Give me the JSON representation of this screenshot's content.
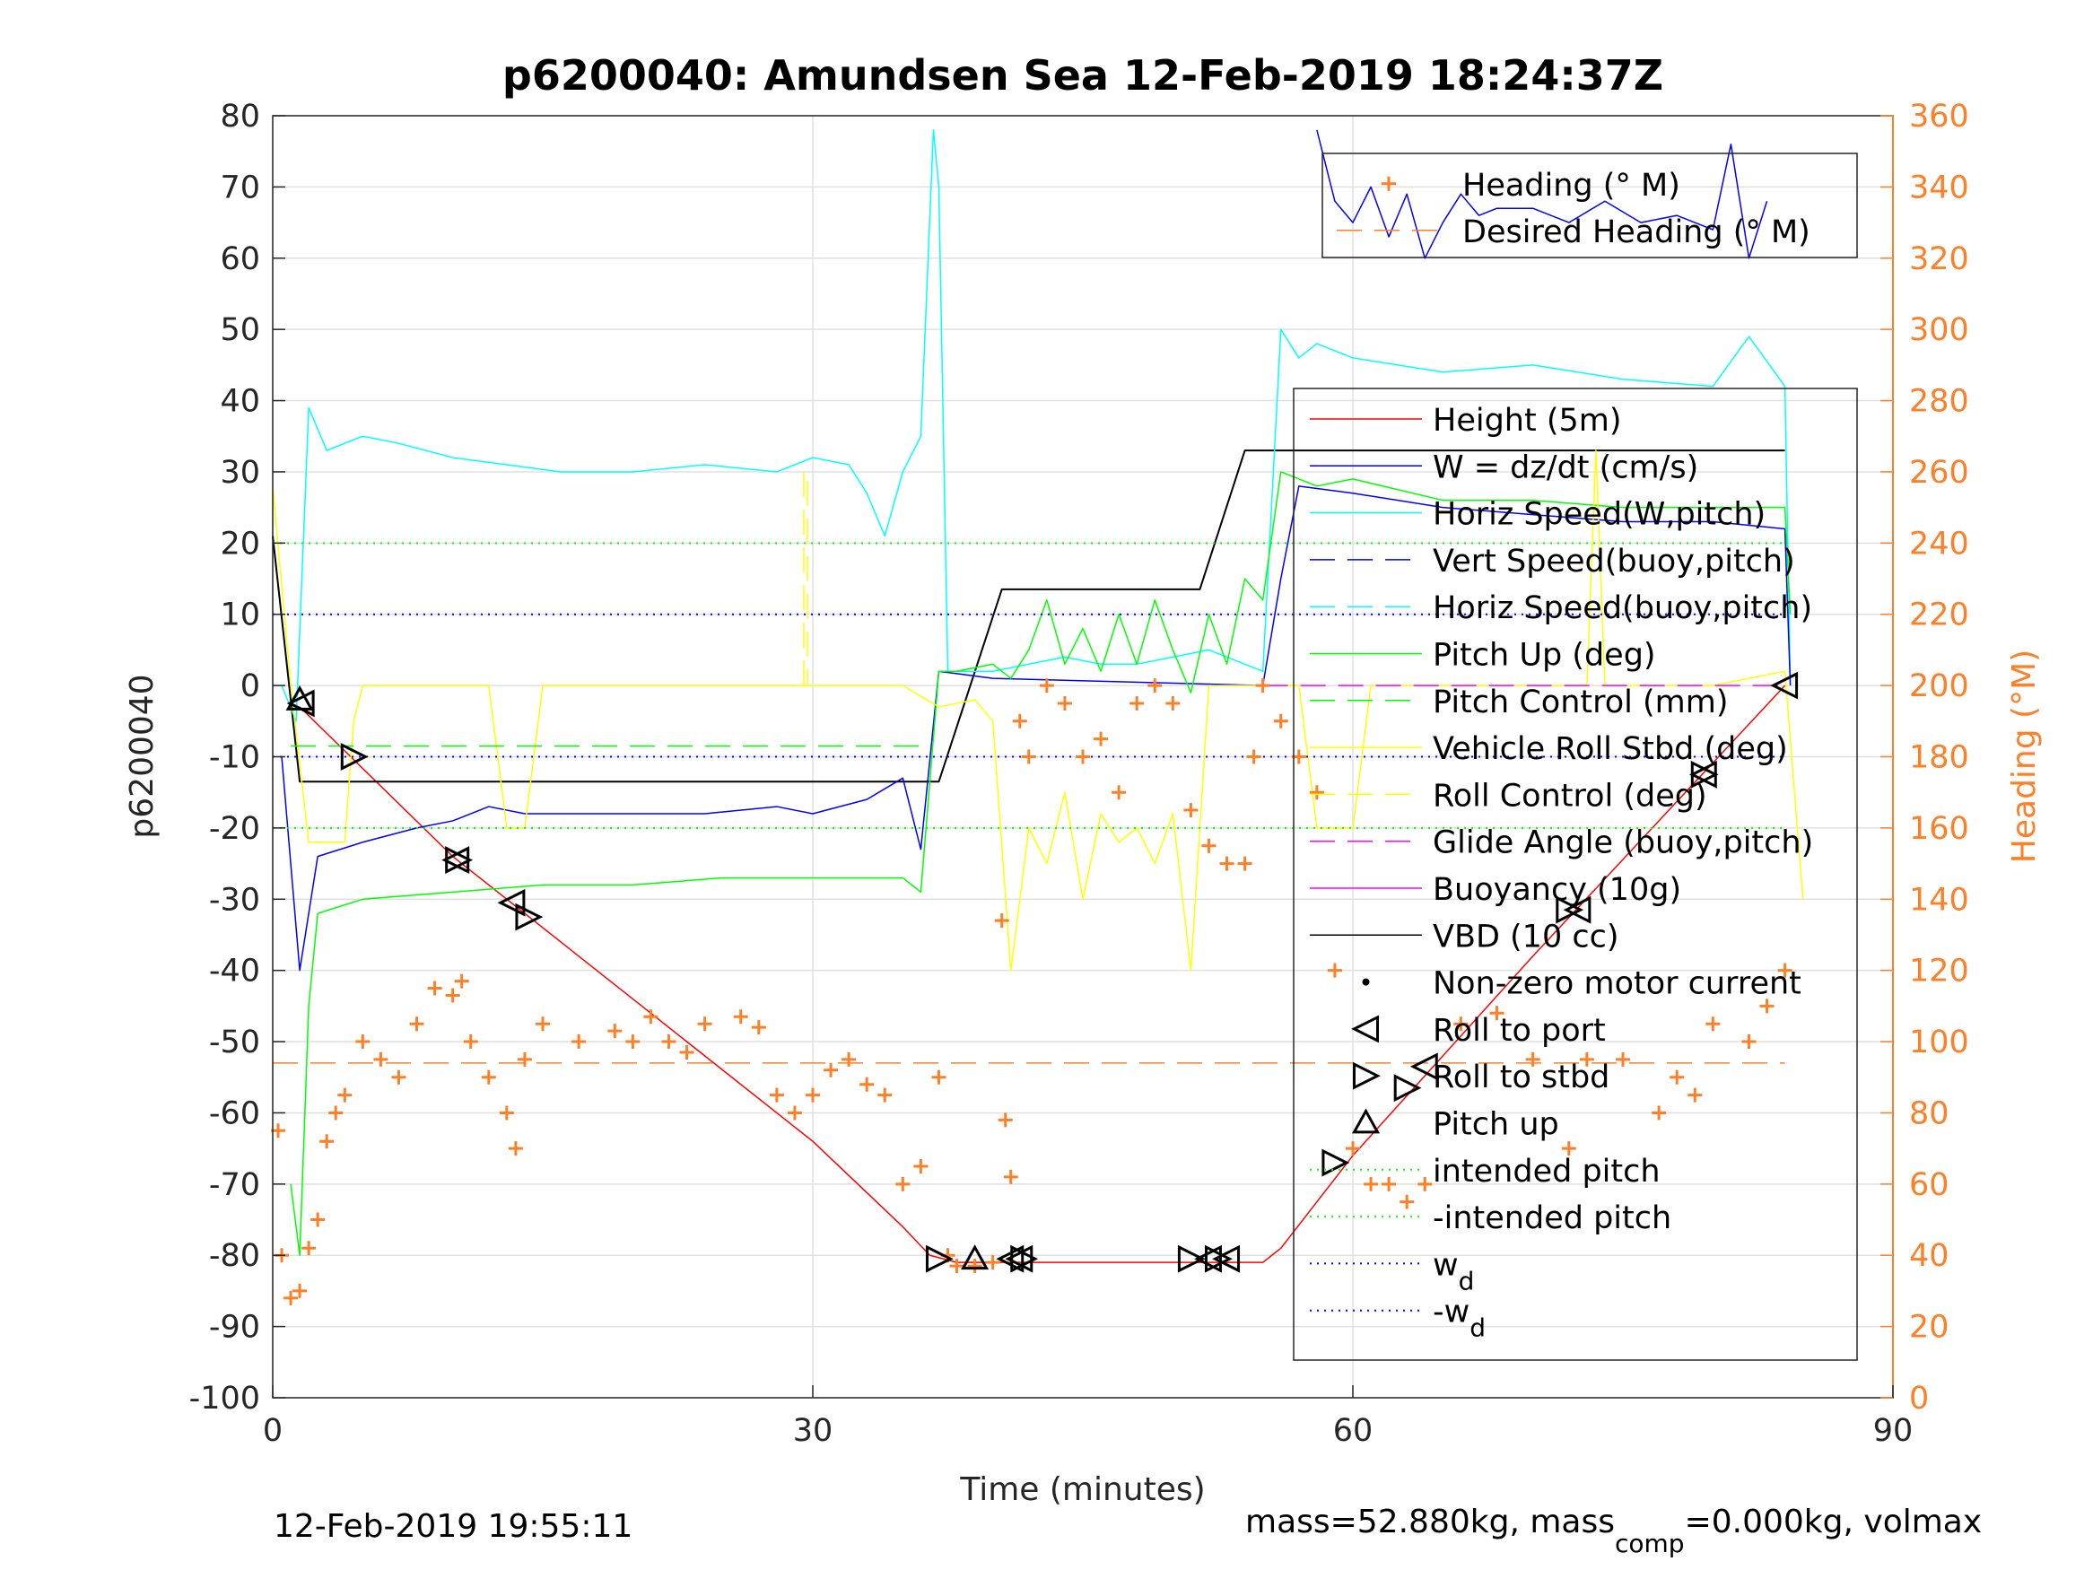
{
  "chart_data": {
    "type": "line",
    "title": "p6200040: Amundsen Sea 12-Feb-2019 18:24:37Z",
    "xlabel": "Time (minutes)",
    "ylabel": "p6200040",
    "y2label": "Heading (°M)",
    "xlim": [
      0,
      90
    ],
    "ylim": [
      -100,
      80
    ],
    "y2lim": [
      0,
      360
    ],
    "xticks": [
      "0",
      "30",
      "60",
      "90"
    ],
    "yticks": [
      "80",
      "70",
      "60",
      "50",
      "40",
      "30",
      "20",
      "10",
      "0",
      "-10",
      "-20",
      "-30",
      "-40",
      "-50",
      "-60",
      "-70",
      "-80",
      "-90",
      "-100"
    ],
    "y2ticks": [
      "360",
      "340",
      "320",
      "300",
      "280",
      "260",
      "240",
      "220",
      "200",
      "180",
      "160",
      "140",
      "120",
      "100",
      "80",
      "60",
      "40",
      "20",
      "0"
    ],
    "grid": true,
    "footer_left": "12-Feb-2019 19:55:11",
    "footer_right": {
      "pre": "mass=52.880kg, mass",
      "sub": "comp",
      "post": "=0.000kg, volmax"
    },
    "colors": {
      "heading": "#ff7f27",
      "axis2": "#ff7f27"
    },
    "legend_top": [
      {
        "label": "Heading (° M)",
        "color": "#ff7f27",
        "style": "plus"
      },
      {
        "label": "Desired Heading (° M)",
        "color": "#ff7f27",
        "style": "dash"
      }
    ],
    "legend_main": [
      {
        "label": "Height (5m)",
        "color": "#ff0000",
        "style": "solid"
      },
      {
        "label": "W = dz/dt (cm/s)",
        "color": "#0000ff",
        "style": "solid"
      },
      {
        "label": "Horiz Speed(W,pitch)",
        "color": "#00ffff",
        "style": "solid"
      },
      {
        "label": "Vert Speed(buoy,pitch)",
        "color": "#0000ff",
        "style": "dash"
      },
      {
        "label": "Horiz Speed(buoy,pitch)",
        "color": "#00ffff",
        "style": "dash"
      },
      {
        "label": "Pitch Up (deg)",
        "color": "#00ff00",
        "style": "solid"
      },
      {
        "label": "Pitch Control (mm)",
        "color": "#00ff00",
        "style": "dash"
      },
      {
        "label": "Vehicle Roll Stbd (deg)",
        "color": "#ffff00",
        "style": "solid"
      },
      {
        "label": "Roll Control (deg)",
        "color": "#ffff00",
        "style": "dash"
      },
      {
        "label": "Glide Angle (buoy,pitch)",
        "color": "#ff00ff",
        "style": "dash"
      },
      {
        "label": "Buoyancy (10g)",
        "color": "#ff00ff",
        "style": "solid"
      },
      {
        "label": "VBD (10 cc)",
        "color": "#000000",
        "style": "solid"
      },
      {
        "label": "Non-zero motor current",
        "color": "#000000",
        "style": "dot"
      },
      {
        "label": "Roll to port",
        "color": "#000000",
        "style": "tri-left"
      },
      {
        "label": "Roll to stbd",
        "color": "#000000",
        "style": "tri-right"
      },
      {
        "label": "Pitch up",
        "color": "#000000",
        "style": "tri-up"
      },
      {
        "label": "intended pitch",
        "color": "#00ff00",
        "style": "dotted"
      },
      {
        "label": "-intended pitch",
        "color": "#00ff00",
        "style": "dotted"
      },
      {
        "label": "w",
        "sub": "d",
        "color": "#0000ff",
        "style": "dotted"
      },
      {
        "label": "-w",
        "sub": "d",
        "color": "#0000ff",
        "style": "dotted"
      }
    ],
    "series": [
      {
        "name": "Height (5m)",
        "color": "#ff0000",
        "width": 1.5,
        "x": [
          1.5,
          10,
          20,
          30,
          35,
          36.5,
          38,
          55,
          56,
          60,
          70,
          84
        ],
        "y": [
          -3,
          -24,
          -44,
          -64,
          -76,
          -80,
          -81,
          -81,
          -79,
          -66,
          -38,
          0
        ]
      },
      {
        "name": "VBD (10 cc)",
        "color": "#000000",
        "width": 2,
        "x": [
          0,
          1.5,
          37,
          40.5,
          51.5,
          54,
          84
        ],
        "y": [
          21,
          -13.5,
          -13.5,
          13.5,
          13.5,
          33,
          33
        ]
      },
      {
        "name": "Horiz Speed(W,pitch)",
        "color": "#00ffff",
        "width": 1.5,
        "x": [
          0.5,
          1.3,
          2,
          3,
          5,
          7,
          10,
          13,
          16,
          20,
          24,
          28,
          30,
          32,
          33,
          34,
          35,
          36,
          36.7,
          37,
          37.5,
          40,
          42,
          44,
          46,
          48,
          50,
          52,
          54,
          55,
          56,
          57,
          58,
          60,
          65,
          70,
          75,
          80,
          82,
          84,
          84.3
        ],
        "y": [
          0,
          -5,
          39,
          33,
          35,
          34,
          32,
          31,
          30,
          30,
          31,
          30,
          32,
          31,
          27,
          21,
          30,
          35,
          78,
          70,
          2,
          2,
          3,
          4,
          3,
          3,
          4,
          5,
          3,
          2,
          50,
          46,
          48,
          46,
          44,
          45,
          43,
          42,
          49,
          42,
          0
        ]
      },
      {
        "name": "W = dz/dt (cm/s)",
        "color": "#0000ff",
        "width": 1.5,
        "x": [
          0.5,
          1.5,
          2.5,
          5,
          8,
          10,
          12,
          14,
          17,
          20,
          24,
          28,
          30,
          33,
          35,
          36,
          37,
          40,
          55,
          56,
          57,
          60,
          65,
          70,
          75,
          80,
          84,
          84.3
        ],
        "y": [
          -10,
          -40,
          -24,
          -22,
          -20,
          -19,
          -17,
          -18,
          -18,
          -18,
          -18,
          -17,
          -18,
          -16,
          -13,
          -23,
          2,
          1,
          0,
          15,
          28,
          27,
          25,
          24,
          23,
          23,
          22,
          0
        ]
      },
      {
        "name": "W high",
        "color": "#0000ff",
        "width": 1.5,
        "x": [
          58,
          59,
          60,
          61,
          62,
          63,
          64,
          65,
          66,
          67,
          68,
          70,
          72,
          74,
          76,
          78,
          80,
          81,
          82,
          83
        ],
        "y": [
          78,
          68,
          65,
          70,
          63,
          69,
          60,
          65,
          69,
          66,
          67,
          67,
          65,
          68,
          65,
          66,
          64,
          76,
          60,
          68
        ]
      },
      {
        "name": "Pitch Up (deg)",
        "color": "#00ff00",
        "width": 1.5,
        "x": [
          1,
          1.5,
          2,
          2.5,
          5,
          10,
          15,
          20,
          25,
          30,
          35,
          36,
          37,
          38,
          40,
          41,
          42,
          43,
          44,
          45,
          46,
          47,
          48,
          49,
          50,
          51,
          52,
          53,
          54,
          55,
          56,
          58,
          60,
          65,
          70,
          75,
          80,
          84,
          84.3
        ],
        "y": [
          -70,
          -80,
          -45,
          -32,
          -30,
          -29,
          -28,
          -28,
          -27,
          -27,
          -27,
          -29,
          2,
          2,
          3,
          1,
          5,
          12,
          3,
          8,
          2,
          10,
          3,
          12,
          5,
          -1,
          10,
          3,
          15,
          12,
          30,
          28,
          29,
          26,
          26,
          25,
          25,
          25,
          10
        ]
      },
      {
        "name": "Vehicle Roll Stbd (deg)",
        "color": "#ffff00",
        "width": 1.5,
        "x": [
          0,
          1,
          2,
          4,
          4.5,
          5,
          10,
          12,
          13,
          14,
          15,
          20,
          25,
          30,
          35,
          37,
          39,
          40,
          41,
          42,
          43,
          44,
          45,
          46,
          47,
          48,
          49,
          50,
          51,
          52,
          57,
          58,
          60,
          61,
          63,
          70,
          73,
          73.5,
          74,
          80,
          84,
          85
        ],
        "y": [
          28,
          0,
          -22,
          -22,
          -5,
          0,
          0,
          0,
          -20,
          -20,
          0,
          0,
          0,
          0,
          0,
          -3,
          -2,
          -5,
          -40,
          -20,
          -25,
          -15,
          -30,
          -18,
          -22,
          -20,
          -25,
          -18,
          -40,
          0,
          0,
          -20,
          -20,
          0,
          0,
          0,
          0,
          33,
          0,
          0,
          2,
          -30
        ]
      },
      {
        "name": "Pitch Control (mm)",
        "color": "#00ff00",
        "width": 1.5,
        "dash": "28 14",
        "x": [
          1,
          36.5
        ],
        "y": [
          -8.5,
          -8.5
        ]
      },
      {
        "name": "Roll Control spikes",
        "color": "#ffff00",
        "width": 1.5,
        "dash": "28 14",
        "x": [
          29.5,
          29.5,
          29.7,
          29.7
        ],
        "y": [
          0,
          30,
          30,
          0
        ]
      },
      {
        "name": "Glide Angle (buoy,pitch)",
        "color": "#ff00ff",
        "width": 1.5,
        "dash": "28 14",
        "x": [
          55,
          84
        ],
        "y": [
          0,
          0
        ]
      },
      {
        "name": "intended pitch",
        "color": "#00ff00",
        "width": 2,
        "dash": "2 6",
        "x": [
          0,
          84
        ],
        "y": [
          20,
          20
        ]
      },
      {
        "name": "-intended pitch",
        "color": "#00ff00",
        "width": 2,
        "dash": "2 6",
        "x": [
          0,
          84
        ],
        "y": [
          -20,
          -20
        ]
      },
      {
        "name": "wd",
        "color": "#0000ff",
        "width": 2,
        "dash": "2 6",
        "x": [
          0,
          84
        ],
        "y": [
          10,
          10
        ]
      },
      {
        "name": "-wd",
        "color": "#0000ff",
        "width": 2,
        "dash": "2 6",
        "x": [
          0,
          84
        ],
        "y": [
          -10,
          -10
        ]
      },
      {
        "name": "Desired Heading (° M)",
        "color": "#ff7f27",
        "width": 1.5,
        "dash": "28 14",
        "x": [
          0,
          84
        ],
        "y": [
          -53,
          -53
        ]
      }
    ],
    "heading": {
      "x": [
        0.3,
        0.5,
        1,
        1.5,
        2,
        2.5,
        3,
        3.5,
        4,
        5,
        6,
        7,
        8,
        9,
        10,
        10.5,
        11,
        12,
        13,
        13.5,
        14,
        15,
        17,
        19,
        20,
        21,
        22,
        23,
        24,
        26,
        27,
        28,
        29,
        30,
        31,
        32,
        33,
        34,
        35,
        36,
        37,
        37.5,
        38,
        39,
        40,
        40.5,
        40.7,
        41,
        41.5,
        42,
        43,
        44,
        45,
        46,
        47,
        48,
        49,
        50,
        51,
        52,
        53,
        54,
        54.5,
        55,
        56,
        57,
        58,
        59,
        60,
        61,
        62,
        63,
        64,
        66,
        68,
        70,
        72,
        73,
        75,
        77,
        78,
        79,
        80,
        82,
        83,
        84
      ],
      "y": [
        75,
        40,
        28,
        30,
        42,
        50,
        72,
        80,
        85,
        100,
        95,
        90,
        105,
        115,
        113,
        117,
        100,
        90,
        80,
        70,
        95,
        105,
        100,
        103,
        100,
        107,
        100,
        97,
        105,
        107,
        104,
        85,
        80,
        85,
        92,
        95,
        88,
        85,
        60,
        65,
        90,
        40,
        37,
        37,
        38,
        134,
        78,
        62,
        190,
        180,
        200,
        195,
        180,
        185,
        170,
        195,
        200,
        195,
        165,
        155,
        150,
        150,
        180,
        200,
        190,
        180,
        170,
        120,
        70,
        60,
        60,
        55,
        60,
        105,
        108,
        95,
        70,
        95,
        95,
        80,
        90,
        85,
        105,
        100,
        110,
        120
      ]
    },
    "markers": {
      "roll_to_port": {
        "x": [
          1.6,
          10.2,
          13.3,
          41,
          41.5,
          52,
          53,
          64,
          72.5,
          79.5,
          84
        ],
        "y": [
          -2.5,
          -24.5,
          -30.5,
          -80.5,
          -80.5,
          -80.5,
          -80.5,
          -53.5,
          -31.5,
          -12.5,
          0
        ]
      },
      "roll_to_stbd": {
        "x": [
          4.5,
          10.3,
          14.2,
          37,
          41.7,
          51,
          52.5,
          59,
          63,
          72,
          79.5
        ],
        "y": [
          -10,
          -24.5,
          -32.5,
          -80.5,
          -80.5,
          -80.5,
          -80.5,
          -67,
          -56.5,
          -31.5,
          -12.5
        ]
      },
      "pitch_up": {
        "x": [
          1.5,
          39
        ],
        "y": [
          -2,
          -80.5
        ]
      }
    }
  }
}
